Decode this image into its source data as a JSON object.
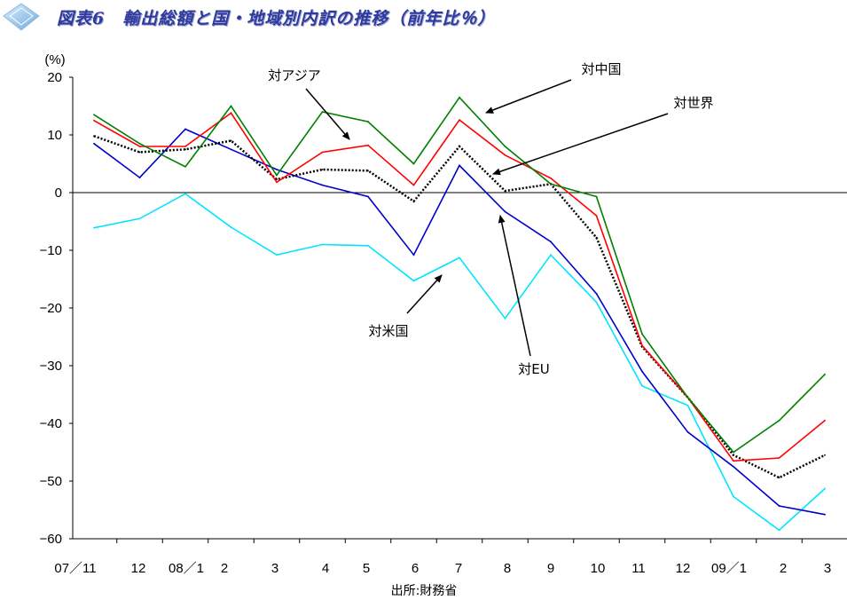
{
  "page": {
    "title": "図表6　輸出総額と国・地域別内訳の推移（前年比％）",
    "source": "出所:財務省"
  },
  "chart_data": {
    "type": "line",
    "unit_label": "(%)",
    "ylim": [
      -60,
      20
    ],
    "yticks": [
      20,
      10,
      0,
      -10,
      -20,
      -30,
      -40,
      -50,
      -60
    ],
    "categories": [
      "07／11",
      "12",
      "08／1",
      "2",
      "3",
      "4",
      "5",
      "6",
      "7",
      "8",
      "9",
      "10",
      "11",
      "12",
      "09／1",
      "2",
      "3"
    ],
    "grid": false,
    "zero_line": true,
    "series": [
      {
        "name": "対中国",
        "color": "#008000",
        "dash": "",
        "values": [
          13.5,
          8.5,
          4.5,
          15.0,
          3.0,
          14.0,
          12.3,
          5.0,
          16.5,
          8.0,
          1.5,
          -0.7,
          -24.5,
          -35.5,
          -45.0,
          -39.5,
          -31.5
        ]
      },
      {
        "name": "対アジア",
        "color": "#ff0000",
        "dash": "",
        "values": [
          12.5,
          8.0,
          8.0,
          13.8,
          1.8,
          7.0,
          8.2,
          1.3,
          12.6,
          6.5,
          2.5,
          -4.0,
          -26.5,
          -35.5,
          -46.5,
          -46.0,
          -39.5
        ]
      },
      {
        "name": "対世界",
        "color": "#000000",
        "dash": "2,2",
        "values": [
          9.8,
          7.0,
          7.5,
          9.0,
          2.3,
          4.0,
          3.8,
          -1.5,
          8.0,
          0.3,
          1.5,
          -7.8,
          -26.7,
          -35.5,
          -45.5,
          -49.4,
          -45.5
        ]
      },
      {
        "name": "対EU",
        "color": "#0000cd",
        "dash": "",
        "values": [
          8.5,
          2.6,
          11.0,
          7.5,
          4.0,
          1.3,
          -0.7,
          -10.8,
          4.7,
          -3.3,
          -8.5,
          -17.5,
          -31.0,
          -41.5,
          -47.5,
          -54.3,
          -55.8
        ]
      },
      {
        "name": "対米国",
        "color": "#00e5ff",
        "dash": "",
        "values": [
          -6.1,
          -4.5,
          -0.2,
          -6.0,
          -10.8,
          -9.0,
          -9.2,
          -15.3,
          -11.3,
          -21.8,
          -10.8,
          -19.0,
          -33.5,
          -36.9,
          -52.7,
          -58.5,
          -51.3
        ]
      }
    ],
    "annotations": [
      {
        "label": "対アジア",
        "series": "対アジア"
      },
      {
        "label": "対中国",
        "series": "対中国"
      },
      {
        "label": "対世界",
        "series": "対世界"
      },
      {
        "label": "対米国",
        "series": "対米国"
      },
      {
        "label": "対EU",
        "series": "対EU"
      }
    ]
  }
}
